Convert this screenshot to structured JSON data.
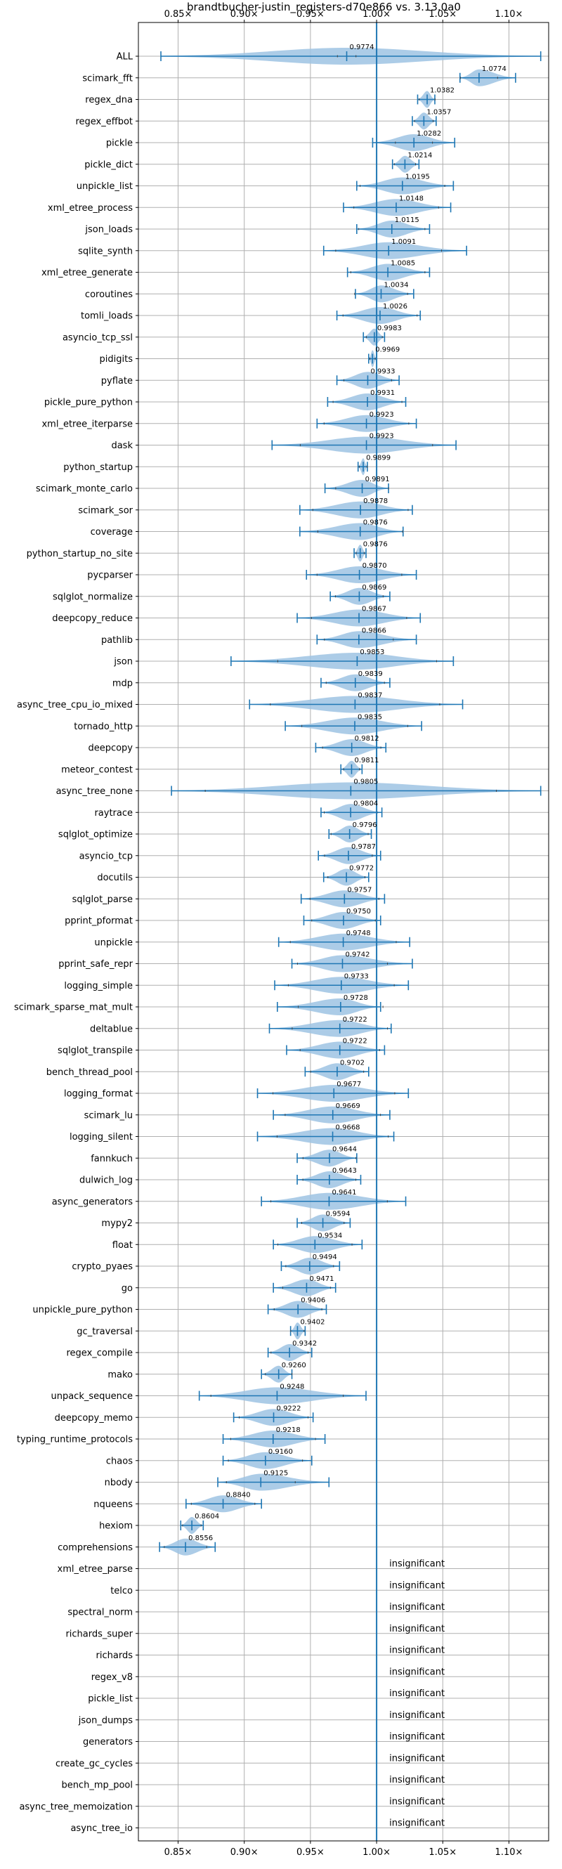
{
  "chart_data": {
    "type": "violin",
    "title": "brandtbucher-justin_registers-d70e866 vs. 3.13.0a0",
    "x_ticks": [
      0.85,
      0.9,
      0.95,
      1.0,
      1.05,
      1.1
    ],
    "x_tick_labels": [
      "0.85×",
      "0.90×",
      "0.95×",
      "1.00×",
      "1.05×",
      "1.10×"
    ],
    "xlim": [
      0.82,
      1.13
    ],
    "reference_line": 1.0,
    "grid": true,
    "insignificant_label": "insignificant",
    "benchmarks": [
      {
        "name": "ALL",
        "value": 0.9774,
        "min": 0.837,
        "max": 1.124,
        "spread": 0.007
      },
      {
        "name": "scimark_fft",
        "value": 1.0774,
        "min": 1.063,
        "max": 1.105,
        "spread": 0.014
      },
      {
        "name": "regex_dna",
        "value": 1.0382,
        "min": 1.031,
        "max": 1.044,
        "spread": 0.006
      },
      {
        "name": "regex_effbot",
        "value": 1.0357,
        "min": 1.027,
        "max": 1.045,
        "spread": 0.007
      },
      {
        "name": "pickle",
        "value": 1.0282,
        "min": 0.997,
        "max": 1.059,
        "spread": 0.014
      },
      {
        "name": "pickle_dict",
        "value": 1.0214,
        "min": 1.012,
        "max": 1.032,
        "spread": 0.008
      },
      {
        "name": "unpickle_list",
        "value": 1.0195,
        "min": 0.985,
        "max": 1.058,
        "spread": 0.032
      },
      {
        "name": "xml_etree_process",
        "value": 1.0148,
        "min": 0.975,
        "max": 1.056,
        "spread": 0.032
      },
      {
        "name": "json_loads",
        "value": 1.0115,
        "min": 0.985,
        "max": 1.04,
        "spread": 0.025
      },
      {
        "name": "sqlite_synth",
        "value": 1.0091,
        "min": 0.96,
        "max": 1.068,
        "spread": 0.04
      },
      {
        "name": "xml_etree_generate",
        "value": 1.0085,
        "min": 0.978,
        "max": 1.04,
        "spread": 0.028
      },
      {
        "name": "coroutines",
        "value": 1.0034,
        "min": 0.984,
        "max": 1.028,
        "spread": 0.02
      },
      {
        "name": "tomli_loads",
        "value": 1.0026,
        "min": 0.97,
        "max": 1.033,
        "spread": 0.028
      },
      {
        "name": "asyncio_tcp_ssl",
        "value": 0.9983,
        "min": 0.99,
        "max": 1.006,
        "spread": 0.006
      },
      {
        "name": "pidigits",
        "value": 0.9969,
        "min": 0.994,
        "max": 1.0,
        "spread": 0.002
      },
      {
        "name": "pyflate",
        "value": 0.9933,
        "min": 0.97,
        "max": 1.017,
        "spread": 0.018
      },
      {
        "name": "pickle_pure_python",
        "value": 0.9931,
        "min": 0.963,
        "max": 1.022,
        "spread": 0.026
      },
      {
        "name": "xml_etree_iterparse",
        "value": 0.9923,
        "min": 0.955,
        "max": 1.03,
        "spread": 0.032
      },
      {
        "name": "dask",
        "value": 0.9923,
        "min": 0.921,
        "max": 1.06,
        "spread": 0.05
      },
      {
        "name": "python_startup",
        "value": 0.9899,
        "min": 0.986,
        "max": 0.993,
        "spread": 0.003
      },
      {
        "name": "scimark_monte_carlo",
        "value": 0.9891,
        "min": 0.961,
        "max": 1.009,
        "spread": 0.02
      },
      {
        "name": "scimark_sor",
        "value": 0.9878,
        "min": 0.942,
        "max": 1.027,
        "spread": 0.036
      },
      {
        "name": "coverage",
        "value": 0.9876,
        "min": 0.942,
        "max": 1.02,
        "spread": 0.032
      },
      {
        "name": "python_startup_no_site",
        "value": 0.9876,
        "min": 0.983,
        "max": 0.992,
        "spread": 0.003
      },
      {
        "name": "pycparser",
        "value": 0.987,
        "min": 0.947,
        "max": 1.03,
        "spread": 0.032
      },
      {
        "name": "sqlglot_normalize",
        "value": 0.9869,
        "min": 0.965,
        "max": 1.01,
        "spread": 0.018
      },
      {
        "name": "deepcopy_reduce",
        "value": 0.9867,
        "min": 0.94,
        "max": 1.033,
        "spread": 0.036
      },
      {
        "name": "pathlib",
        "value": 0.9866,
        "min": 0.955,
        "max": 1.03,
        "spread": 0.026
      },
      {
        "name": "json",
        "value": 0.9853,
        "min": 0.89,
        "max": 1.058,
        "spread": 0.06
      },
      {
        "name": "mdp",
        "value": 0.9839,
        "min": 0.958,
        "max": 1.01,
        "spread": 0.022
      },
      {
        "name": "async_tree_cpu_io_mixed",
        "value": 0.9837,
        "min": 0.904,
        "max": 1.065,
        "spread": 0.064
      },
      {
        "name": "tornado_http",
        "value": 0.9835,
        "min": 0.931,
        "max": 1.034,
        "spread": 0.04
      },
      {
        "name": "deepcopy",
        "value": 0.9812,
        "min": 0.954,
        "max": 1.007,
        "spread": 0.022
      },
      {
        "name": "meteor_contest",
        "value": 0.9811,
        "min": 0.973,
        "max": 0.989,
        "spread": 0.006
      },
      {
        "name": "async_tree_none",
        "value": 0.9805,
        "min": 0.845,
        "max": 1.124,
        "spread": 0.11
      },
      {
        "name": "raytrace",
        "value": 0.9804,
        "min": 0.958,
        "max": 1.004,
        "spread": 0.02
      },
      {
        "name": "sqlglot_optimize",
        "value": 0.9796,
        "min": 0.964,
        "max": 0.996,
        "spread": 0.014
      },
      {
        "name": "asyncio_tcp",
        "value": 0.9787,
        "min": 0.956,
        "max": 1.003,
        "spread": 0.018
      },
      {
        "name": "docutils",
        "value": 0.9772,
        "min": 0.96,
        "max": 0.994,
        "spread": 0.014
      },
      {
        "name": "sqlglot_parse",
        "value": 0.9757,
        "min": 0.943,
        "max": 1.006,
        "spread": 0.026
      },
      {
        "name": "pprint_pformat",
        "value": 0.975,
        "min": 0.945,
        "max": 1.003,
        "spread": 0.024
      },
      {
        "name": "unpickle",
        "value": 0.9748,
        "min": 0.926,
        "max": 1.025,
        "spread": 0.04
      },
      {
        "name": "pprint_safe_repr",
        "value": 0.9742,
        "min": 0.936,
        "max": 1.027,
        "spread": 0.034
      },
      {
        "name": "logging_simple",
        "value": 0.9733,
        "min": 0.923,
        "max": 1.024,
        "spread": 0.04
      },
      {
        "name": "scimark_sparse_mat_mult",
        "value": 0.9728,
        "min": 0.925,
        "max": 1.003,
        "spread": 0.032
      },
      {
        "name": "deltablue",
        "value": 0.9722,
        "min": 0.919,
        "max": 1.011,
        "spread": 0.036
      },
      {
        "name": "sqlglot_transpile",
        "value": 0.9722,
        "min": 0.932,
        "max": 1.006,
        "spread": 0.03
      },
      {
        "name": "bench_thread_pool",
        "value": 0.9702,
        "min": 0.946,
        "max": 0.994,
        "spread": 0.02
      },
      {
        "name": "logging_format",
        "value": 0.9677,
        "min": 0.91,
        "max": 1.024,
        "spread": 0.046
      },
      {
        "name": "scimark_lu",
        "value": 0.9669,
        "min": 0.922,
        "max": 1.01,
        "spread": 0.036
      },
      {
        "name": "logging_silent",
        "value": 0.9668,
        "min": 0.91,
        "max": 1.013,
        "spread": 0.042
      },
      {
        "name": "fannkuch",
        "value": 0.9644,
        "min": 0.94,
        "max": 0.985,
        "spread": 0.02
      },
      {
        "name": "dulwich_log",
        "value": 0.9643,
        "min": 0.94,
        "max": 0.988,
        "spread": 0.02
      },
      {
        "name": "async_generators",
        "value": 0.9641,
        "min": 0.913,
        "max": 1.022,
        "spread": 0.044
      },
      {
        "name": "mypy2",
        "value": 0.9594,
        "min": 0.94,
        "max": 0.98,
        "spread": 0.016
      },
      {
        "name": "float",
        "value": 0.9534,
        "min": 0.922,
        "max": 0.989,
        "spread": 0.028
      },
      {
        "name": "crypto_pyaes",
        "value": 0.9494,
        "min": 0.928,
        "max": 0.972,
        "spread": 0.018
      },
      {
        "name": "go",
        "value": 0.9471,
        "min": 0.922,
        "max": 0.969,
        "spread": 0.018
      },
      {
        "name": "unpickle_pure_python",
        "value": 0.9406,
        "min": 0.918,
        "max": 0.962,
        "spread": 0.018
      },
      {
        "name": "gc_traversal",
        "value": 0.9402,
        "min": 0.935,
        "max": 0.946,
        "spread": 0.005
      },
      {
        "name": "regex_compile",
        "value": 0.9342,
        "min": 0.918,
        "max": 0.951,
        "spread": 0.014
      },
      {
        "name": "mako",
        "value": 0.926,
        "min": 0.913,
        "max": 0.936,
        "spread": 0.01
      },
      {
        "name": "unpack_sequence",
        "value": 0.9248,
        "min": 0.866,
        "max": 0.992,
        "spread": 0.05
      },
      {
        "name": "deepcopy_memo",
        "value": 0.9222,
        "min": 0.892,
        "max": 0.952,
        "spread": 0.026
      },
      {
        "name": "typing_runtime_protocols",
        "value": 0.9218,
        "min": 0.884,
        "max": 0.961,
        "spread": 0.032
      },
      {
        "name": "chaos",
        "value": 0.916,
        "min": 0.884,
        "max": 0.951,
        "spread": 0.028
      },
      {
        "name": "nbody",
        "value": 0.9125,
        "min": 0.88,
        "max": 0.964,
        "spread": 0.026
      },
      {
        "name": "nqueens",
        "value": 0.884,
        "min": 0.856,
        "max": 0.913,
        "spread": 0.024
      },
      {
        "name": "hexiom",
        "value": 0.8604,
        "min": 0.852,
        "max": 0.869,
        "spread": 0.007
      },
      {
        "name": "comprehensions",
        "value": 0.8556,
        "min": 0.836,
        "max": 0.878,
        "spread": 0.016
      }
    ],
    "insignificant": [
      "xml_etree_parse",
      "telco",
      "spectral_norm",
      "richards_super",
      "richards",
      "regex_v8",
      "pickle_list",
      "json_dumps",
      "generators",
      "create_gc_cycles",
      "bench_mp_pool",
      "async_tree_memoization",
      "async_tree_io"
    ],
    "colors": {
      "violin_fill": "#9ec3e3",
      "line": "#1f77b4",
      "grid": "#b0b0b0",
      "axis": "#000000"
    }
  }
}
